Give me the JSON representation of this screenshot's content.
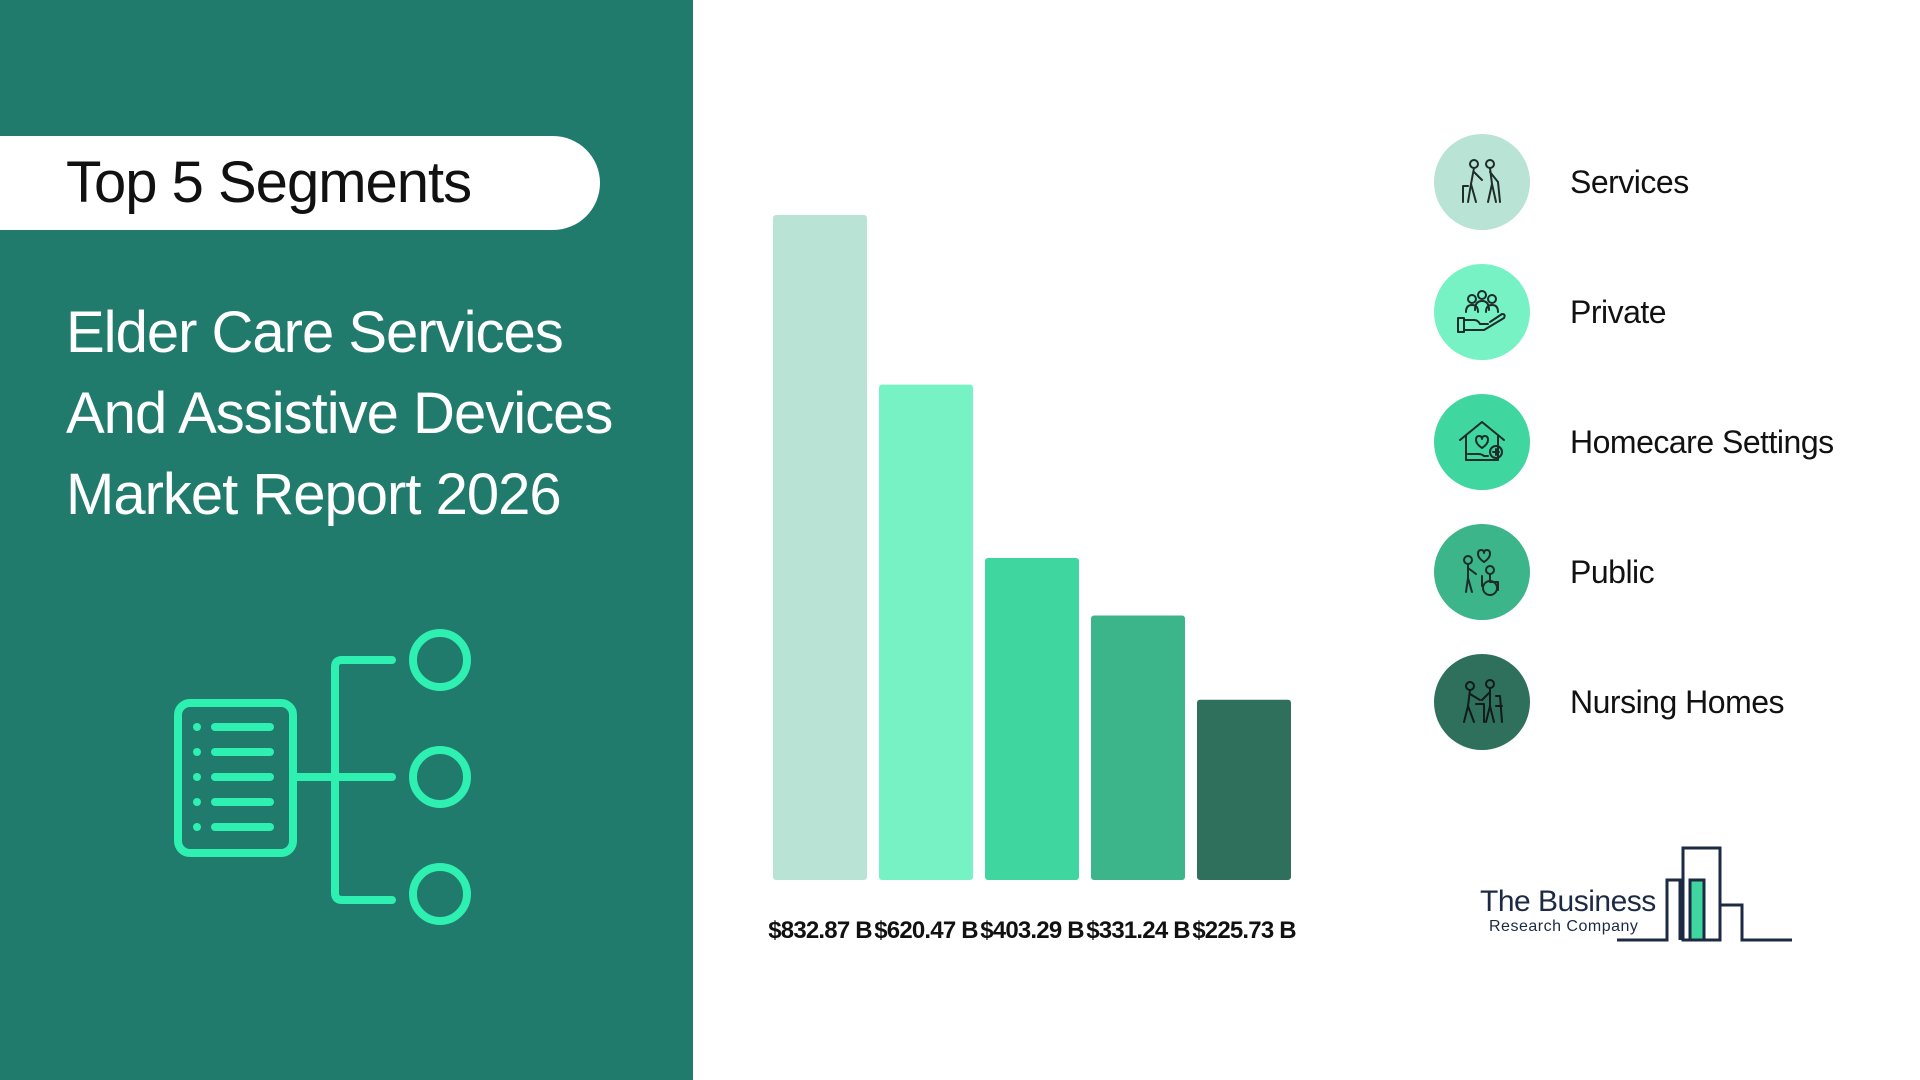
{
  "header": {
    "pill_label": "Top 5 Segments",
    "title_lines": [
      "Elder Care Services",
      "And Assistive Devices",
      "Market Report 2026"
    ]
  },
  "chart_data": {
    "type": "bar",
    "categories": [
      "Services",
      "Private",
      "Homecare Settings",
      "Public",
      "Nursing Homes"
    ],
    "values": [
      832.87,
      620.47,
      403.29,
      331.24,
      225.73
    ],
    "data_labels": [
      "$832.87 B",
      "$620.47 B",
      "$403.29 B",
      "$331.24 B",
      "$225.73 B"
    ],
    "colors": [
      "#b8e3d5",
      "#76f2c5",
      "#3fd69f",
      "#3cb58a",
      "#2e705c"
    ],
    "title": "",
    "xlabel": "",
    "ylabel": "",
    "ylim": [
      0,
      832.87
    ],
    "grid": false,
    "legend": "right"
  },
  "legend": {
    "items": [
      {
        "label": "Services",
        "icon": "elderly-couple-icon",
        "color": "#b8e3d5"
      },
      {
        "label": "Private",
        "icon": "hand-holding-people-icon",
        "color": "#76f2c5"
      },
      {
        "label": "Homecare Settings",
        "icon": "home-care-icon",
        "color": "#3fd69f"
      },
      {
        "label": "Public",
        "icon": "wheelchair-care-icon",
        "color": "#3cb58a"
      },
      {
        "label": "Nursing Homes",
        "icon": "caregiver-walker-icon",
        "color": "#2e705c"
      }
    ]
  },
  "logo": {
    "name": "The Business",
    "subtitle": "Research Company"
  },
  "colors": {
    "panel": "#207b6c",
    "accent": "#2ef0b0"
  }
}
